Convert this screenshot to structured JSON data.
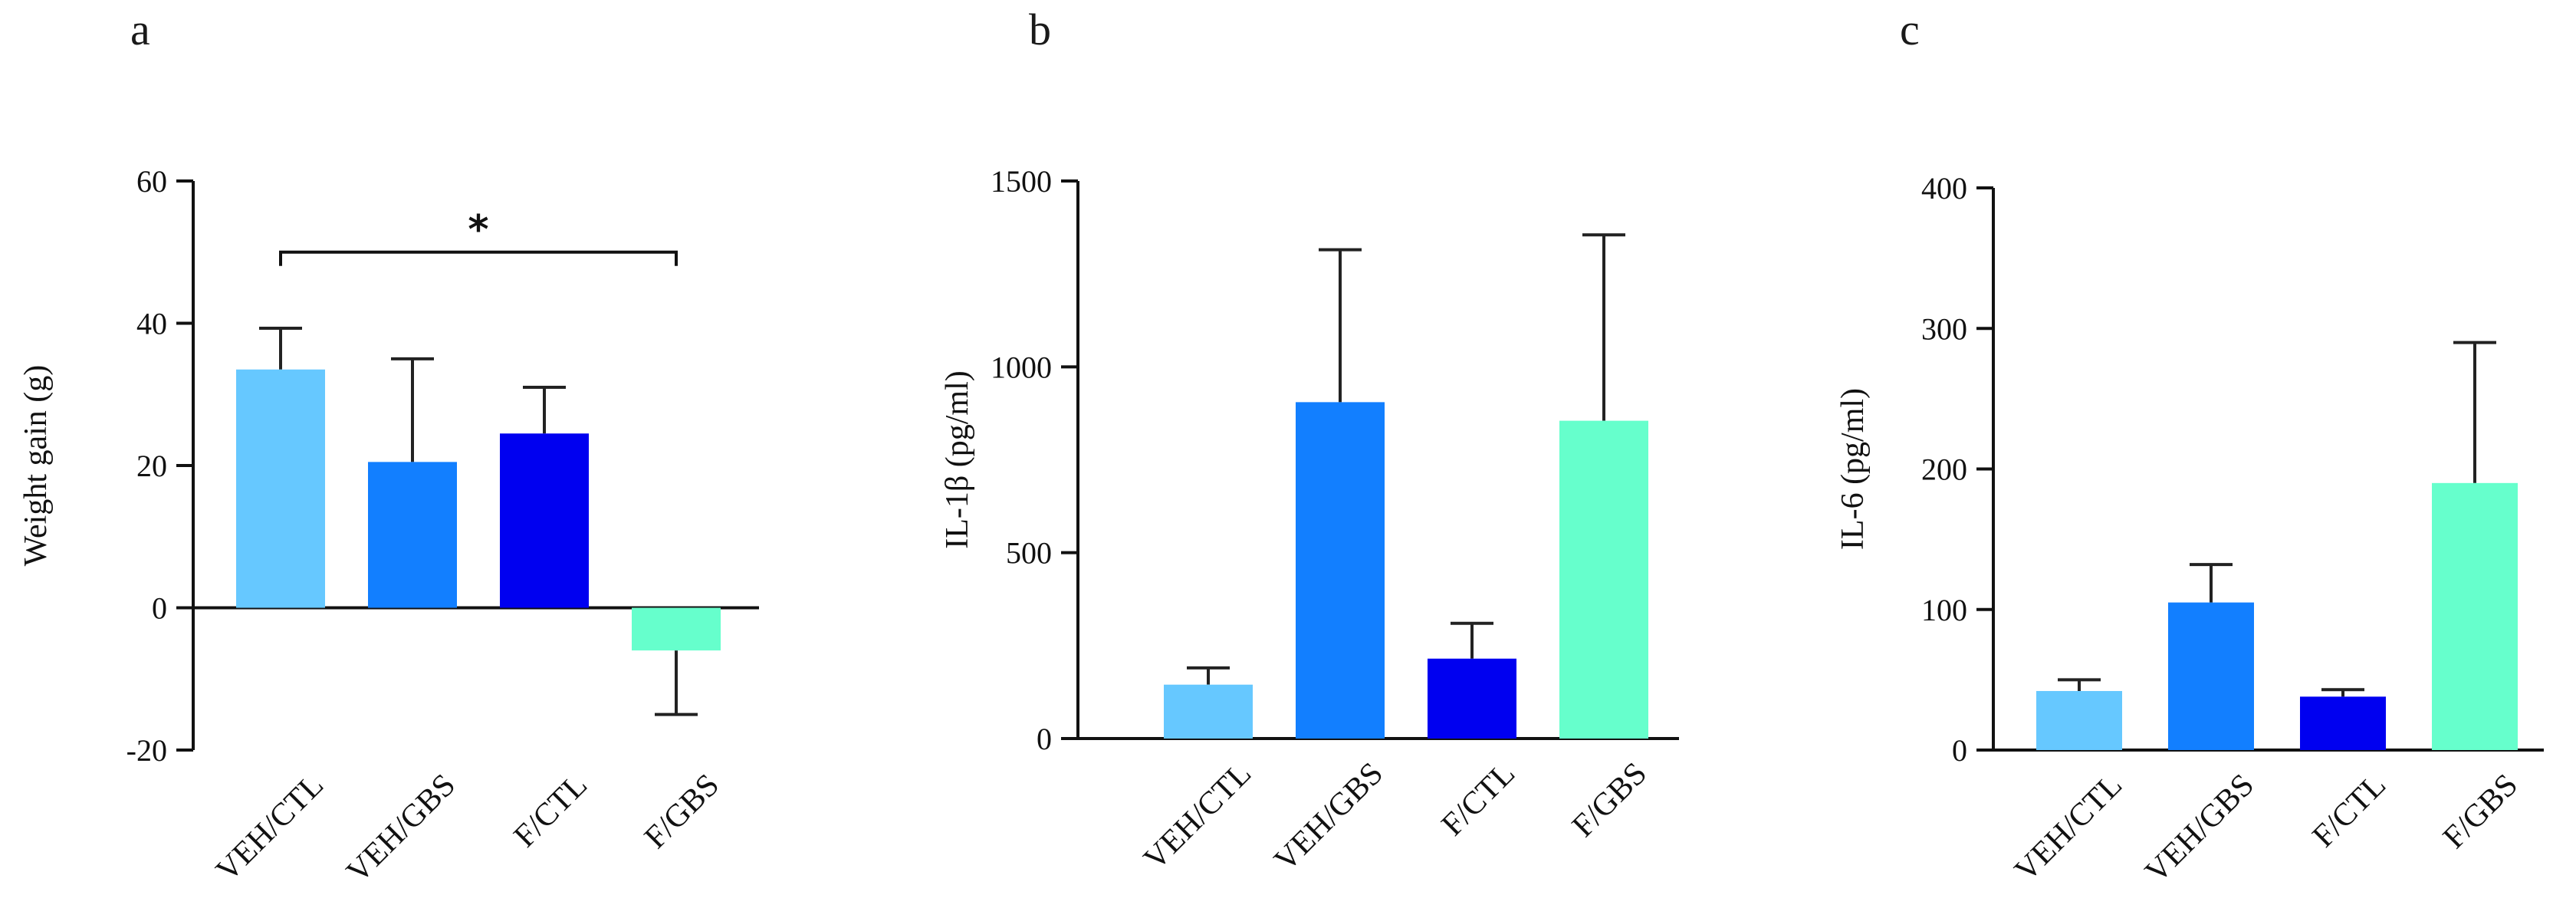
{
  "figure": {
    "colors": {
      "VEH/CTL": "#66c8ff",
      "VEH/GBS": "#127fff",
      "F/CTL": "#0000f0",
      "F/GBS": "#66ffcc"
    }
  },
  "chart_data": [
    {
      "panel": "a",
      "type": "bar",
      "categories": [
        "VEH/CTL",
        "VEH/GBS",
        "F/CTL",
        "F/GBS"
      ],
      "values": [
        33.5,
        20.5,
        24.5,
        -6
      ],
      "error": [
        5.8,
        14.5,
        6.5,
        9
      ],
      "ylabel": "Weight gain (g)",
      "ylim": [
        -20,
        60
      ],
      "yticks": [
        -20,
        0,
        20,
        40,
        60
      ],
      "significance": [
        {
          "from": 0,
          "to": 3,
          "label": "*",
          "y": 50
        }
      ]
    },
    {
      "panel": "b",
      "type": "bar",
      "categories": [
        "VEH/CTL",
        "VEH/GBS",
        "F/CTL",
        "F/GBS"
      ],
      "values": [
        145,
        905,
        215,
        855
      ],
      "error": [
        45,
        410,
        95,
        500
      ],
      "ylabel": "IL-1β (pg/ml)",
      "ylim": [
        0,
        1500
      ],
      "yticks": [
        0,
        500,
        1000,
        1500
      ],
      "significance": []
    },
    {
      "panel": "c",
      "type": "bar",
      "categories": [
        "VEH/CTL",
        "VEH/GBS",
        "F/CTL",
        "F/GBS"
      ],
      "values": [
        42,
        105,
        38,
        190
      ],
      "error": [
        8,
        27,
        5,
        100
      ],
      "ylabel": "IL-6 (pg/ml)",
      "ylim": [
        0,
        400
      ],
      "yticks": [
        0,
        100,
        200,
        300,
        400
      ],
      "significance": []
    }
  ]
}
